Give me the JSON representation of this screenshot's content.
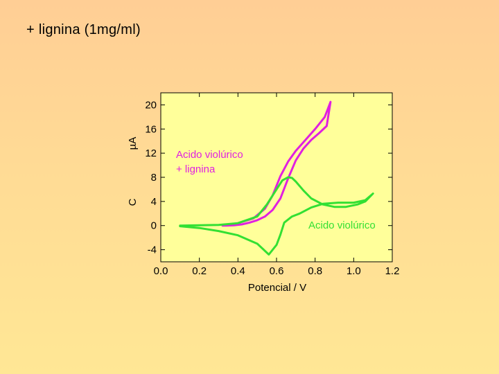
{
  "slide": {
    "title": "+ lignina (1mg/ml)"
  },
  "colors": {
    "plot_bg": "#ffff9a",
    "series_magenta": "#e020e0",
    "series_green": "#33e033"
  },
  "chart_data": {
    "type": "line",
    "xlabel": "Potencial / V",
    "ylabel": "µA",
    "ylabel_fragment": "C",
    "xlim": [
      0.0,
      1.2
    ],
    "ylim": [
      -6,
      22
    ],
    "xticks": [
      "0.0",
      "0.2",
      "0.4",
      "0.6",
      "0.8",
      "1.0",
      "1.2"
    ],
    "yticks": [
      "-4",
      "0",
      "4",
      "8",
      "12",
      "16",
      "20"
    ],
    "grid": false,
    "series": [
      {
        "name": "Acido violúrico + lignina",
        "label_lines": [
          "Acido violúrico",
          "+ lignina"
        ],
        "color": "magenta",
        "x": [
          0.32,
          0.4,
          0.48,
          0.54,
          0.58,
          0.62,
          0.66,
          0.7,
          0.75,
          0.8,
          0.85,
          0.88,
          0.86,
          0.82,
          0.78,
          0.74,
          0.7,
          0.66,
          0.62,
          0.58,
          0.54,
          0.5,
          0.46,
          0.42,
          0.38,
          0.34,
          0.32
        ],
        "y": [
          0.0,
          0.4,
          1.2,
          2.8,
          5.0,
          8.2,
          10.6,
          12.4,
          14.2,
          16.0,
          18.0,
          20.5,
          16.5,
          15.3,
          14.2,
          12.8,
          10.8,
          7.8,
          4.5,
          2.6,
          1.5,
          0.9,
          0.5,
          0.2,
          0.05,
          0.0,
          0.0
        ]
      },
      {
        "name": "Acido violúrico",
        "label_lines": [
          "Acido violúrico"
        ],
        "color": "green",
        "x": [
          0.1,
          0.2,
          0.3,
          0.4,
          0.5,
          0.55,
          0.6,
          0.63,
          0.66,
          0.68,
          0.7,
          0.74,
          0.78,
          0.84,
          0.9,
          0.96,
          1.02,
          1.06,
          1.1,
          1.06,
          1.0,
          0.92,
          0.84,
          0.78,
          0.72,
          0.68,
          0.64,
          0.62,
          0.6,
          0.56,
          0.5,
          0.4,
          0.3,
          0.2,
          0.1
        ],
        "y": [
          0.0,
          0.05,
          0.1,
          0.4,
          1.5,
          3.5,
          6.0,
          7.5,
          8.0,
          7.9,
          7.3,
          5.8,
          4.5,
          3.5,
          3.1,
          3.1,
          3.5,
          4.0,
          5.3,
          4.2,
          3.8,
          3.8,
          3.6,
          3.0,
          2.0,
          1.5,
          0.5,
          -1.5,
          -3.2,
          -4.8,
          -3.0,
          -1.6,
          -0.9,
          -0.4,
          -0.1
        ]
      }
    ]
  }
}
